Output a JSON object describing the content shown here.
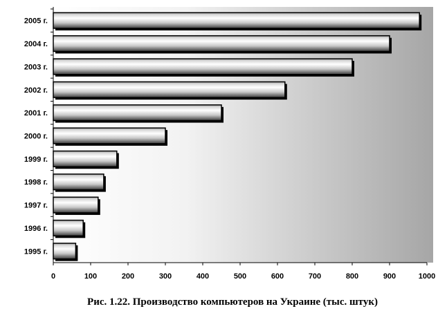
{
  "chart_data": {
    "type": "bar",
    "orientation": "horizontal",
    "categories": [
      "1995 г.",
      "1996 г.",
      "1997 г.",
      "1998 г.",
      "1999 г.",
      "2000 г.",
      "2001 г.",
      "2002 г.",
      "2003 г.",
      "2004 г.",
      "2005 г."
    ],
    "values": [
      60,
      80,
      120,
      135,
      170,
      300,
      450,
      620,
      800,
      900,
      980
    ],
    "xlim": [
      0,
      1000
    ],
    "xticks": [
      0,
      100,
      200,
      300,
      400,
      500,
      600,
      700,
      800,
      900,
      1000
    ],
    "grid": false,
    "legend": "none",
    "caption": "Рис. 1.22. Производство компьютеров на Украине (тыс. штук)"
  }
}
